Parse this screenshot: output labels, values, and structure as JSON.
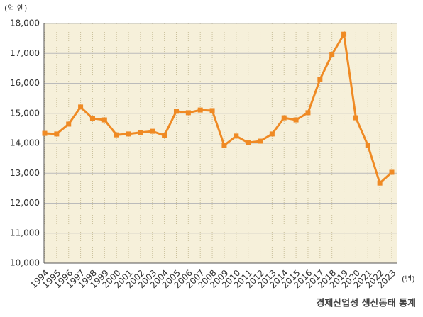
{
  "chart_data": {
    "type": "line",
    "unit_label": "(억 엔)",
    "x_unit_label": "(년)",
    "source": "경제산업성 생산동태 통계",
    "categories": [
      "1994",
      "1995",
      "1996",
      "1997",
      "1998",
      "1999",
      "2000",
      "2001",
      "2002",
      "2003",
      "2004",
      "2005",
      "2006",
      "2007",
      "2008",
      "2009",
      "2010",
      "2011",
      "2012",
      "2013",
      "2014",
      "2015",
      "2016",
      "2017",
      "2018",
      "2019",
      "2020",
      "2021",
      "2022",
      "2023"
    ],
    "values": [
      14330,
      14310,
      14640,
      15210,
      14830,
      14780,
      14280,
      14310,
      14360,
      14400,
      14260,
      15070,
      15020,
      15110,
      15090,
      13930,
      14240,
      14020,
      14070,
      14310,
      14850,
      14780,
      15020,
      16130,
      16960,
      17640,
      14850,
      13930,
      12670,
      13030
    ],
    "color": "#ef8a24",
    "ylim": [
      10000,
      18000
    ],
    "yticks": [
      {
        "value": 10000,
        "label": "10,000"
      },
      {
        "value": 11000,
        "label": "11,000"
      },
      {
        "value": 12000,
        "label": "12,000"
      },
      {
        "value": 13000,
        "label": "13,000"
      },
      {
        "value": 14000,
        "label": "14,000"
      },
      {
        "value": 15000,
        "label": "15,000"
      },
      {
        "value": 16000,
        "label": "16,000"
      },
      {
        "value": 17000,
        "label": "17,000"
      },
      {
        "value": 18000,
        "label": "18,000"
      }
    ],
    "grid": true
  }
}
